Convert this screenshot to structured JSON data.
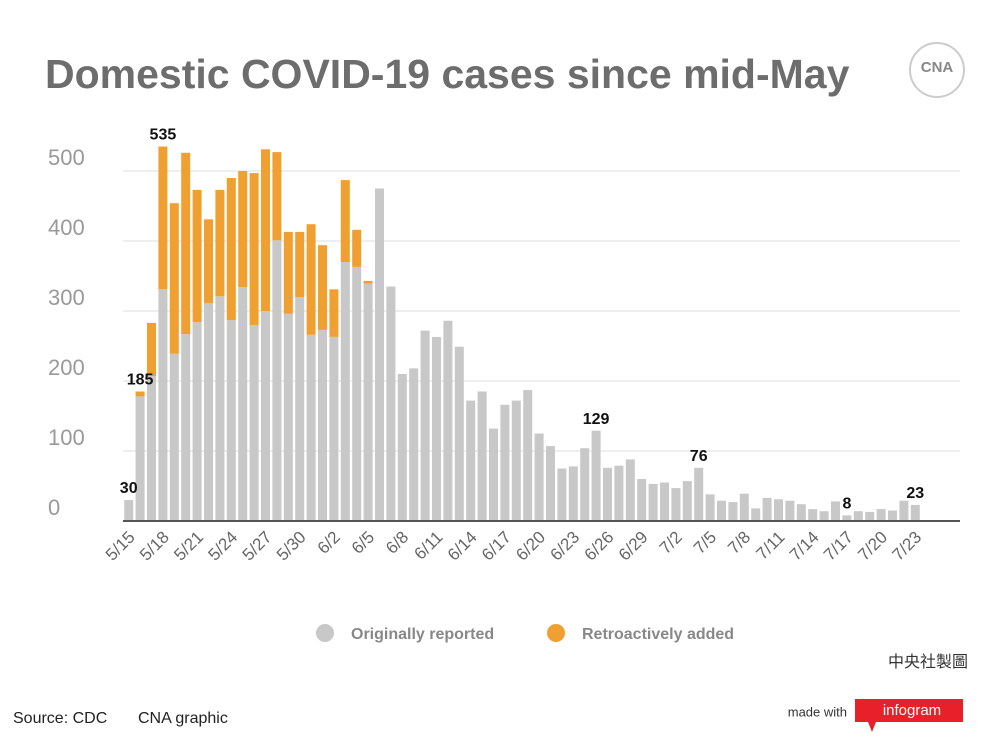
{
  "chart_data": {
    "type": "stacked-bar",
    "title": "Domestic COVID-19 cases since mid-May",
    "categories": [
      "5/15",
      null,
      null,
      "5/18",
      null,
      null,
      "5/21",
      null,
      null,
      "5/24",
      null,
      null,
      "5/27",
      null,
      null,
      "5/30",
      null,
      null,
      "6/2",
      null,
      null,
      "6/5",
      null,
      null,
      "6/8",
      null,
      null,
      "6/11",
      null,
      null,
      "6/14",
      null,
      null,
      "6/17",
      null,
      null,
      "6/20",
      null,
      null,
      "6/23",
      null,
      null,
      "6/26",
      null,
      null,
      "6/29",
      null,
      null,
      "7/2",
      null,
      null,
      "7/5",
      null,
      null,
      "7/8",
      null,
      null,
      "7/11",
      null,
      null,
      "7/14",
      null,
      null,
      "7/17",
      null,
      null,
      "7/20",
      null,
      null,
      "7/23"
    ],
    "series": [
      {
        "name": "Originally reported",
        "color": "#c8c8c8",
        "values": [
          30,
          178,
          207,
          331,
          239,
          267,
          284,
          311,
          321,
          287,
          334,
          280,
          300,
          401,
          296,
          320,
          266,
          273,
          263,
          370,
          363,
          339,
          475,
          335,
          210,
          218,
          272,
          263,
          286,
          249,
          172,
          185,
          132,
          166,
          172,
          187,
          125,
          107,
          75,
          78,
          104,
          129,
          76,
          79,
          88,
          60,
          53,
          55,
          47,
          57,
          76,
          38,
          29,
          27,
          39,
          18,
          33,
          31,
          29,
          24,
          17,
          14,
          28,
          8,
          14,
          13,
          17,
          15,
          29,
          23
        ]
      },
      {
        "name": "Retroactively added",
        "color": "#f0a030",
        "values": [
          0,
          7,
          76,
          204,
          215,
          259,
          189,
          120,
          152,
          203,
          166,
          217,
          231,
          126,
          117,
          93,
          158,
          121,
          68,
          117,
          53,
          4,
          0,
          0,
          0,
          0,
          0,
          0,
          0,
          0,
          0,
          0,
          0,
          0,
          0,
          0,
          0,
          0,
          0,
          0,
          0,
          0,
          0,
          0,
          0,
          0,
          0,
          0,
          0,
          0,
          0,
          0,
          0,
          0,
          0,
          0,
          0,
          0,
          0,
          0,
          0,
          0,
          0,
          0,
          0,
          0,
          0,
          0,
          0,
          0
        ]
      }
    ],
    "total_labels": [
      30,
      185,
      null,
      535,
      null,
      null,
      null,
      null,
      null,
      null,
      null,
      null,
      null,
      null,
      null,
      null,
      null,
      null,
      null,
      null,
      null,
      null,
      null,
      null,
      null,
      null,
      null,
      null,
      null,
      null,
      null,
      null,
      null,
      null,
      null,
      null,
      null,
      null,
      null,
      null,
      null,
      129,
      null,
      null,
      null,
      null,
      null,
      null,
      null,
      null,
      76,
      null,
      null,
      null,
      null,
      null,
      null,
      null,
      null,
      null,
      null,
      null,
      null,
      8,
      null,
      null,
      null,
      null,
      null,
      23
    ],
    "ylim": [
      0,
      500
    ],
    "yticks": [
      0,
      100,
      200,
      300,
      400,
      500
    ],
    "grid": true,
    "legend": "bottom"
  },
  "logo": "CNA",
  "maker": "中央社製圖",
  "source": "Source: CDC",
  "credit": "CNA graphic",
  "made_with": "made with",
  "brand": "infogram"
}
